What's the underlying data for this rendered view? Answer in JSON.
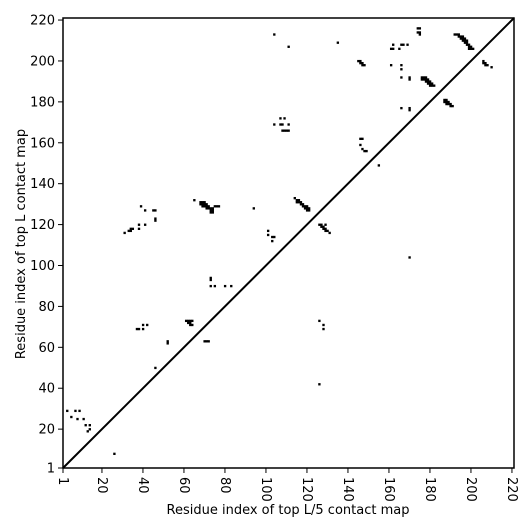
{
  "chart_data": {
    "type": "scatter",
    "title": "",
    "xlabel": "Residue index of top L/5 contact map",
    "ylabel": "Residue index of top L contact map",
    "xlim": [
      1,
      221
    ],
    "ylim": [
      1,
      221
    ],
    "x_ticks": [
      1,
      20,
      40,
      60,
      80,
      100,
      120,
      140,
      160,
      180,
      200,
      220
    ],
    "y_ticks": [
      1,
      20,
      40,
      60,
      80,
      100,
      120,
      140,
      160,
      180,
      200,
      220
    ],
    "diagonal": true,
    "marker": "square",
    "color": "#000000",
    "series": [
      {
        "points": [
          [
            26,
            8
          ],
          [
            13,
            19
          ],
          [
            14,
            20
          ],
          [
            12,
            22
          ],
          [
            14,
            22
          ],
          [
            3,
            29
          ],
          [
            5,
            26
          ],
          [
            8,
            25
          ],
          [
            11,
            25
          ],
          [
            7,
            29
          ],
          [
            9,
            29
          ],
          [
            37,
            69
          ],
          [
            38,
            69
          ],
          [
            40,
            69
          ],
          [
            40,
            71
          ],
          [
            42,
            71
          ],
          [
            46,
            50
          ],
          [
            52,
            62
          ],
          [
            52,
            63
          ],
          [
            61,
            73
          ],
          [
            62,
            73
          ],
          [
            63,
            73
          ],
          [
            64,
            73
          ],
          [
            62,
            72
          ],
          [
            63,
            72
          ],
          [
            64,
            71
          ],
          [
            63,
            71
          ],
          [
            70,
            63
          ],
          [
            71,
            63
          ],
          [
            72,
            63
          ],
          [
            73,
            94
          ],
          [
            73,
            93
          ],
          [
            73,
            90
          ],
          [
            75,
            90
          ],
          [
            80,
            90
          ],
          [
            83,
            90
          ],
          [
            31,
            116
          ],
          [
            33,
            117
          ],
          [
            34,
            117
          ],
          [
            34,
            118
          ],
          [
            35,
            118
          ],
          [
            38,
            118
          ],
          [
            38,
            120
          ],
          [
            41,
            120
          ],
          [
            39,
            129
          ],
          [
            41,
            127
          ],
          [
            45,
            127
          ],
          [
            46,
            127
          ],
          [
            46,
            123
          ],
          [
            46,
            122
          ],
          [
            65,
            132
          ],
          [
            68,
            131
          ],
          [
            69,
            131
          ],
          [
            70,
            131
          ],
          [
            68,
            130
          ],
          [
            69,
            130
          ],
          [
            70,
            130
          ],
          [
            71,
            130
          ],
          [
            69,
            129
          ],
          [
            70,
            129
          ],
          [
            71,
            129
          ],
          [
            72,
            129
          ],
          [
            71,
            128
          ],
          [
            72,
            128
          ],
          [
            73,
            128
          ],
          [
            74,
            128
          ],
          [
            73,
            127
          ],
          [
            74,
            127
          ],
          [
            73,
            126
          ],
          [
            74,
            126
          ],
          [
            75,
            129
          ],
          [
            76,
            129
          ],
          [
            77,
            129
          ],
          [
            94,
            128
          ],
          [
            101,
            117
          ],
          [
            101,
            115
          ],
          [
            103,
            114
          ],
          [
            104,
            114
          ],
          [
            103,
            112
          ],
          [
            104,
            169
          ],
          [
            107,
            169
          ],
          [
            108,
            169
          ],
          [
            107,
            172
          ],
          [
            109,
            172
          ],
          [
            108,
            166
          ],
          [
            109,
            166
          ],
          [
            110,
            166
          ],
          [
            111,
            166
          ],
          [
            111,
            169
          ],
          [
            104,
            213
          ],
          [
            111,
            207
          ],
          [
            135,
            209
          ],
          [
            114,
            133
          ],
          [
            115,
            132
          ],
          [
            116,
            132
          ],
          [
            115,
            131
          ],
          [
            116,
            131
          ],
          [
            117,
            131
          ],
          [
            117,
            130
          ],
          [
            118,
            130
          ],
          [
            118,
            129
          ],
          [
            119,
            129
          ],
          [
            120,
            129
          ],
          [
            119,
            128
          ],
          [
            120,
            128
          ],
          [
            121,
            128
          ],
          [
            120,
            127
          ],
          [
            121,
            127
          ],
          [
            126,
            120
          ],
          [
            127,
            120
          ],
          [
            127,
            119
          ],
          [
            128,
            119
          ],
          [
            129,
            120
          ],
          [
            128,
            118
          ],
          [
            129,
            118
          ],
          [
            129,
            117
          ],
          [
            130,
            117
          ],
          [
            131,
            116
          ],
          [
            126,
            73
          ],
          [
            128,
            71
          ],
          [
            128,
            69
          ],
          [
            126,
            42
          ],
          [
            145,
            200
          ],
          [
            146,
            200
          ],
          [
            146,
            199
          ],
          [
            147,
            199
          ],
          [
            147,
            198
          ],
          [
            148,
            198
          ],
          [
            146,
            162
          ],
          [
            147,
            162
          ],
          [
            146,
            159
          ],
          [
            147,
            157
          ],
          [
            148,
            156
          ],
          [
            149,
            156
          ],
          [
            155,
            149
          ],
          [
            161,
            198
          ],
          [
            161,
            206
          ],
          [
            162,
            206
          ],
          [
            162,
            208
          ],
          [
            165,
            206
          ],
          [
            166,
            208
          ],
          [
            167,
            208
          ],
          [
            166,
            198
          ],
          [
            166,
            196
          ],
          [
            166,
            192
          ],
          [
            170,
            192
          ],
          [
            170,
            191
          ],
          [
            169,
            208
          ],
          [
            166,
            177
          ],
          [
            170,
            177
          ],
          [
            170,
            176
          ],
          [
            170,
            104
          ],
          [
            174,
            214
          ],
          [
            174,
            216
          ],
          [
            175,
            216
          ],
          [
            175,
            214
          ],
          [
            175,
            213
          ],
          [
            176,
            192
          ],
          [
            177,
            192
          ],
          [
            178,
            192
          ],
          [
            176,
            191
          ],
          [
            177,
            191
          ],
          [
            178,
            191
          ],
          [
            179,
            191
          ],
          [
            178,
            190
          ],
          [
            179,
            190
          ],
          [
            180,
            190
          ],
          [
            179,
            189
          ],
          [
            180,
            189
          ],
          [
            181,
            189
          ],
          [
            180,
            188
          ],
          [
            181,
            188
          ],
          [
            182,
            188
          ],
          [
            187,
            181
          ],
          [
            188,
            181
          ],
          [
            187,
            180
          ],
          [
            188,
            180
          ],
          [
            189,
            180
          ],
          [
            188,
            179
          ],
          [
            189,
            179
          ],
          [
            190,
            179
          ],
          [
            190,
            178
          ],
          [
            191,
            178
          ],
          [
            192,
            213
          ],
          [
            193,
            213
          ],
          [
            194,
            213
          ],
          [
            194,
            212
          ],
          [
            195,
            212
          ],
          [
            196,
            212
          ],
          [
            195,
            211
          ],
          [
            196,
            211
          ],
          [
            197,
            211
          ],
          [
            196,
            210
          ],
          [
            197,
            210
          ],
          [
            198,
            210
          ],
          [
            197,
            209
          ],
          [
            198,
            209
          ],
          [
            198,
            208
          ],
          [
            199,
            208
          ],
          [
            199,
            207
          ],
          [
            200,
            207
          ],
          [
            199,
            206
          ],
          [
            200,
            206
          ],
          [
            201,
            206
          ],
          [
            206,
            200
          ],
          [
            206,
            199
          ],
          [
            207,
            199
          ],
          [
            207,
            198
          ],
          [
            208,
            198
          ],
          [
            210,
            197
          ]
        ]
      }
    ]
  }
}
